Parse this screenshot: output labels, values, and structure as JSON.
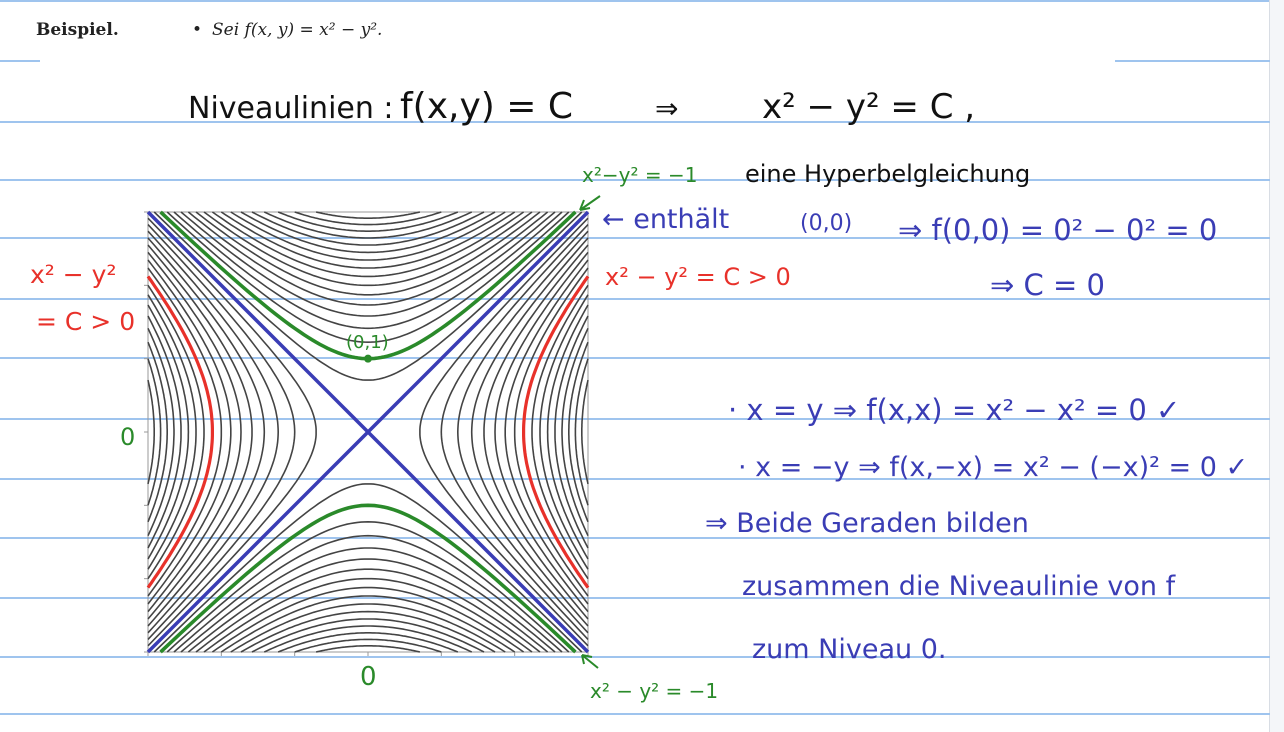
{
  "header": {
    "beispiel": "Beispiel.",
    "bullet": "•",
    "statement": "Sei f(x, y) = x² − y²."
  },
  "annotations": {
    "niveaulinien": "Niveaulinien :",
    "f_eq_c": "f(x,y) = C",
    "implies_1": "⇒",
    "x2y2_eq_c": "x² − y² = C ,",
    "x2y2_minus1_top": "x²−y² = −1",
    "hyperbel": "eine Hyperbelgleichung",
    "enthaelt": "← enthält",
    "origin": "(0,0)",
    "f00": "⇒ f(0,0) = 0² − 0² = 0",
    "c_zero": "⇒ C = 0",
    "c_pos": "x² − y² = C > 0",
    "left_top": "x² − y²",
    "left_bot": "= C > 0",
    "point_01": "(0,1)",
    "zero_left": "0",
    "zero_bottom": "0",
    "x_eq_y": "· x = y ⇒ f(x,x) = x² − x² = 0 ✓",
    "x_eq_minus_y": "· x = −y ⇒ f(x,−x) = x² − (−x)² = 0 ✓",
    "beide": "⇒ Beide Geraden bilden",
    "zusammen": "zusammen die Niveaulinie von f",
    "niveau": "zum Niveau 0.",
    "bottom_label": "x² − y² = −1"
  },
  "colors": {
    "blue": "#3a3db5",
    "green": "#2a8a2a",
    "red": "#e8312a",
    "contour": "#444444",
    "rule": "#9fc4ee"
  },
  "contour_levels": [
    0.5,
    1,
    1.5,
    2,
    2.5,
    3,
    3.5,
    4,
    4.5,
    5,
    5.5,
    6,
    6.5,
    7,
    7.5,
    8,
    8.5
  ],
  "highlight": {
    "green_level": -1,
    "red_level": 4.5
  },
  "plot_range": [
    -3,
    3
  ]
}
